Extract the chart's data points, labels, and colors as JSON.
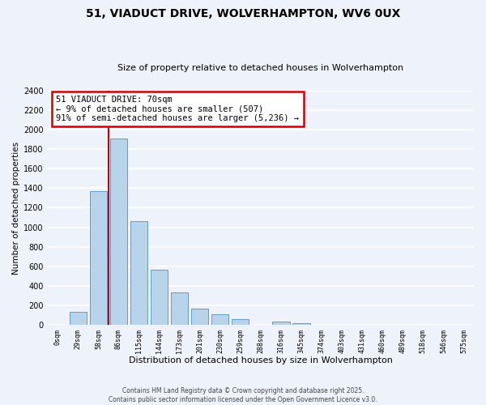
{
  "title": "51, VIADUCT DRIVE, WOLVERHAMPTON, WV6 0UX",
  "subtitle": "Size of property relative to detached houses in Wolverhampton",
  "xlabel": "Distribution of detached houses by size in Wolverhampton",
  "ylabel": "Number of detached properties",
  "bar_labels": [
    "0sqm",
    "29sqm",
    "58sqm",
    "86sqm",
    "115sqm",
    "144sqm",
    "173sqm",
    "201sqm",
    "230sqm",
    "259sqm",
    "288sqm",
    "316sqm",
    "345sqm",
    "374sqm",
    "403sqm",
    "431sqm",
    "460sqm",
    "489sqm",
    "518sqm",
    "546sqm",
    "575sqm"
  ],
  "bar_values": [
    0,
    130,
    1370,
    1910,
    1065,
    565,
    335,
    165,
    105,
    60,
    0,
    30,
    20,
    0,
    0,
    0,
    0,
    0,
    0,
    0,
    0
  ],
  "bar_color": "#b8d4ea",
  "bar_edge_color": "#6699cc",
  "vline_x": 2.5,
  "vline_color": "#cc0000",
  "annotation_title": "51 VIADUCT DRIVE: 70sqm",
  "annotation_line1": "← 9% of detached houses are smaller (507)",
  "annotation_line2": "91% of semi-detached houses are larger (5,236) →",
  "annotation_box_color": "#ffffff",
  "annotation_box_edge": "#cc0000",
  "ylim": [
    0,
    2400
  ],
  "yticks": [
    0,
    200,
    400,
    600,
    800,
    1000,
    1200,
    1400,
    1600,
    1800,
    2000,
    2200,
    2400
  ],
  "footer_line1": "Contains HM Land Registry data © Crown copyright and database right 2025.",
  "footer_line2": "Contains public sector information licensed under the Open Government Licence v3.0.",
  "bg_color": "#eef2fb",
  "grid_color": "#ffffff"
}
